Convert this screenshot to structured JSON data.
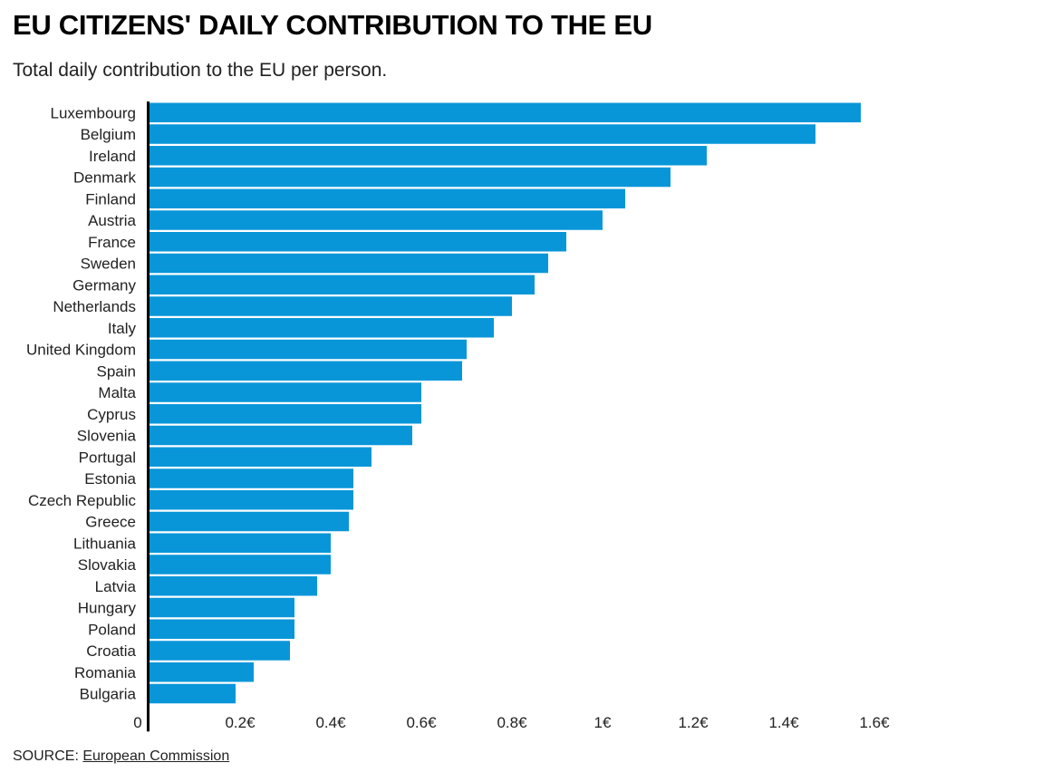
{
  "page": {
    "title": "EU CITIZENS' DAILY CONTRIBUTION TO THE EU",
    "subtitle": "Total daily contribution to the EU per person.",
    "source_label": "SOURCE:",
    "source_link": "European Commission"
  },
  "colors": {
    "bar": "#0896d8",
    "axis": "#000000",
    "text": "#222222"
  },
  "chart_data": {
    "type": "bar",
    "orientation": "horizontal",
    "title": "EU CITIZENS' DAILY CONTRIBUTION TO THE EU",
    "subtitle": "Total daily contribution to the EU per person.",
    "xlabel": "",
    "ylabel": "",
    "xlim": [
      0,
      1.6
    ],
    "grid": false,
    "ticks": [
      {
        "value": 0,
        "label": "0"
      },
      {
        "value": 0.2,
        "label": "0.2€"
      },
      {
        "value": 0.4,
        "label": "0.4€"
      },
      {
        "value": 0.6,
        "label": "0.6€"
      },
      {
        "value": 0.8,
        "label": "0.8€"
      },
      {
        "value": 1.0,
        "label": "1€"
      },
      {
        "value": 1.2,
        "label": "1.2€"
      },
      {
        "value": 1.4,
        "label": "1.4€"
      },
      {
        "value": 1.6,
        "label": "1.6€"
      }
    ],
    "categories": [
      "Luxembourg",
      "Belgium",
      "Ireland",
      "Denmark",
      "Finland",
      "Austria",
      "France",
      "Sweden",
      "Germany",
      "Netherlands",
      "Italy",
      "United Kingdom",
      "Spain",
      "Malta",
      "Cyprus",
      "Slovenia",
      "Portugal",
      "Estonia",
      "Czech Republic",
      "Greece",
      "Lithuania",
      "Slovakia",
      "Latvia",
      "Hungary",
      "Poland",
      "Croatia",
      "Romania",
      "Bulgaria"
    ],
    "values": [
      1.57,
      1.47,
      1.23,
      1.15,
      1.05,
      1.0,
      0.92,
      0.88,
      0.85,
      0.8,
      0.76,
      0.7,
      0.69,
      0.6,
      0.6,
      0.58,
      0.49,
      0.45,
      0.45,
      0.44,
      0.4,
      0.4,
      0.37,
      0.32,
      0.32,
      0.31,
      0.23,
      0.19
    ]
  }
}
